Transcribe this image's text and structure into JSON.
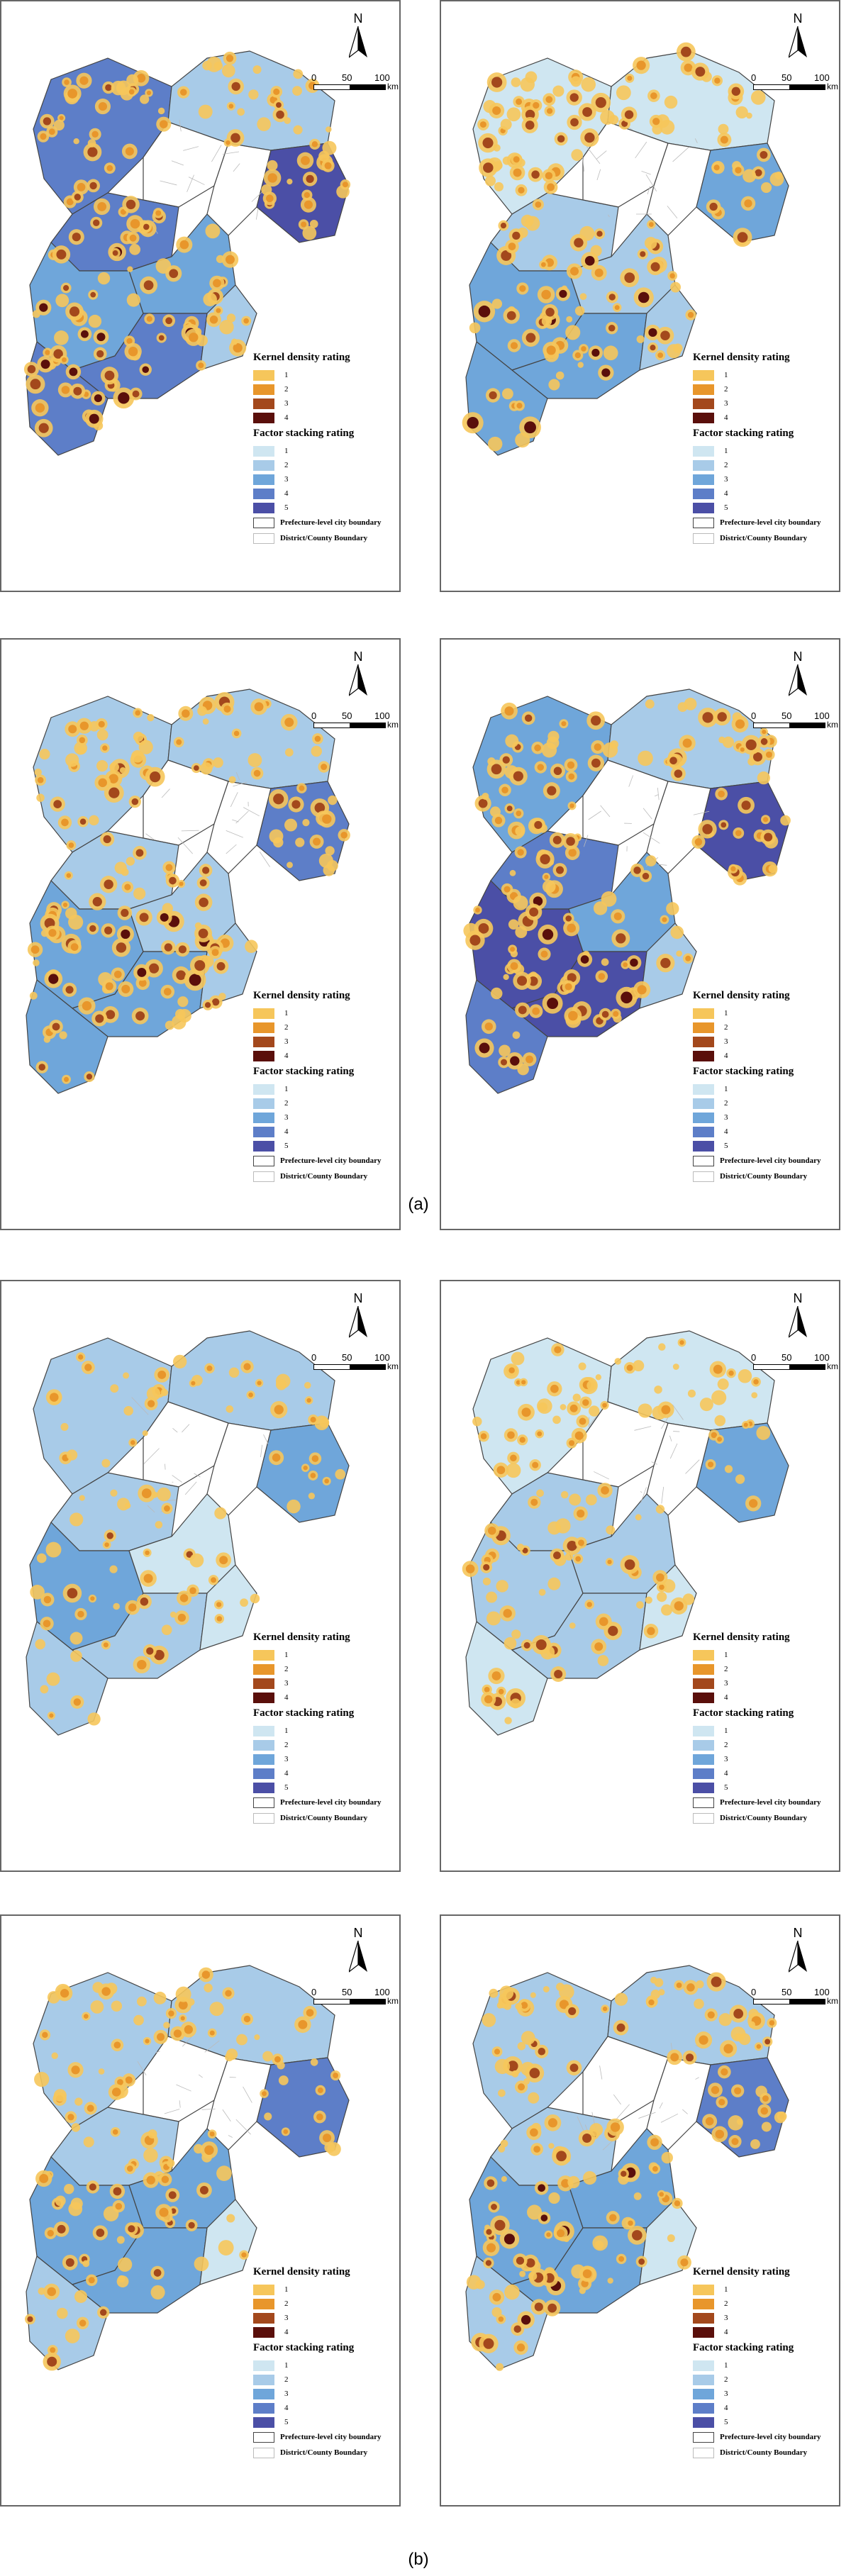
{
  "colors": {
    "kernel": [
      "#f6c65b",
      "#e8962b",
      "#a3481c",
      "#5a0f0b"
    ],
    "factor": [
      "#cfe6f1",
      "#a8cbe8",
      "#6fa6da",
      "#5d7ec8",
      "#4b4fa6"
    ],
    "city_boundary": "#444444",
    "county_boundary": "#bbbbbb"
  },
  "scale_bar": {
    "ticks": [
      "0",
      "50",
      "100"
    ],
    "unit": "km"
  },
  "north_arrow_label": "N",
  "legend": {
    "kernel_title": "Kernel density rating",
    "kernel_levels": [
      "1",
      "2",
      "3",
      "4"
    ],
    "factor_title": "Factor stacking rating",
    "factor_levels": [
      "1",
      "2",
      "3",
      "4",
      "5"
    ],
    "city_boundary_label": "Prefecture-level city boundary",
    "county_boundary_label": "District/County Boundary"
  },
  "panels": [
    {
      "id": "a1",
      "factor_levels_by_region": [
        4,
        2,
        1,
        1,
        4,
        3,
        3,
        4,
        4,
        2,
        5
      ],
      "hotspot_intensity": 3
    },
    {
      "id": "a2",
      "factor_levels_by_region": [
        1,
        1,
        2,
        1,
        2,
        3,
        2,
        3,
        3,
        2,
        3
      ],
      "hotspot_intensity": 3
    },
    {
      "id": "a3",
      "factor_levels_by_region": [
        2,
        2,
        1,
        1,
        2,
        3,
        2,
        3,
        3,
        2,
        4
      ],
      "hotspot_intensity": 3
    },
    {
      "id": "a4",
      "factor_levels_by_region": [
        3,
        2,
        2,
        2,
        4,
        5,
        3,
        5,
        4,
        2,
        5
      ],
      "hotspot_intensity": 3
    },
    {
      "id": "b1",
      "factor_levels_by_region": [
        2,
        2,
        2,
        1,
        2,
        3,
        1,
        2,
        2,
        1,
        3
      ],
      "hotspot_intensity": 1
    },
    {
      "id": "b2",
      "factor_levels_by_region": [
        1,
        1,
        1,
        1,
        2,
        2,
        2,
        2,
        1,
        1,
        3
      ],
      "hotspot_intensity": 2
    },
    {
      "id": "b3",
      "factor_levels_by_region": [
        2,
        2,
        1,
        1,
        2,
        3,
        3,
        3,
        2,
        1,
        4
      ],
      "hotspot_intensity": 2
    },
    {
      "id": "b4",
      "factor_levels_by_region": [
        2,
        2,
        1,
        1,
        2,
        3,
        3,
        3,
        2,
        1,
        4
      ],
      "hotspot_intensity": 3
    }
  ],
  "captions": {
    "a": "(a)",
    "b": "(b)"
  }
}
